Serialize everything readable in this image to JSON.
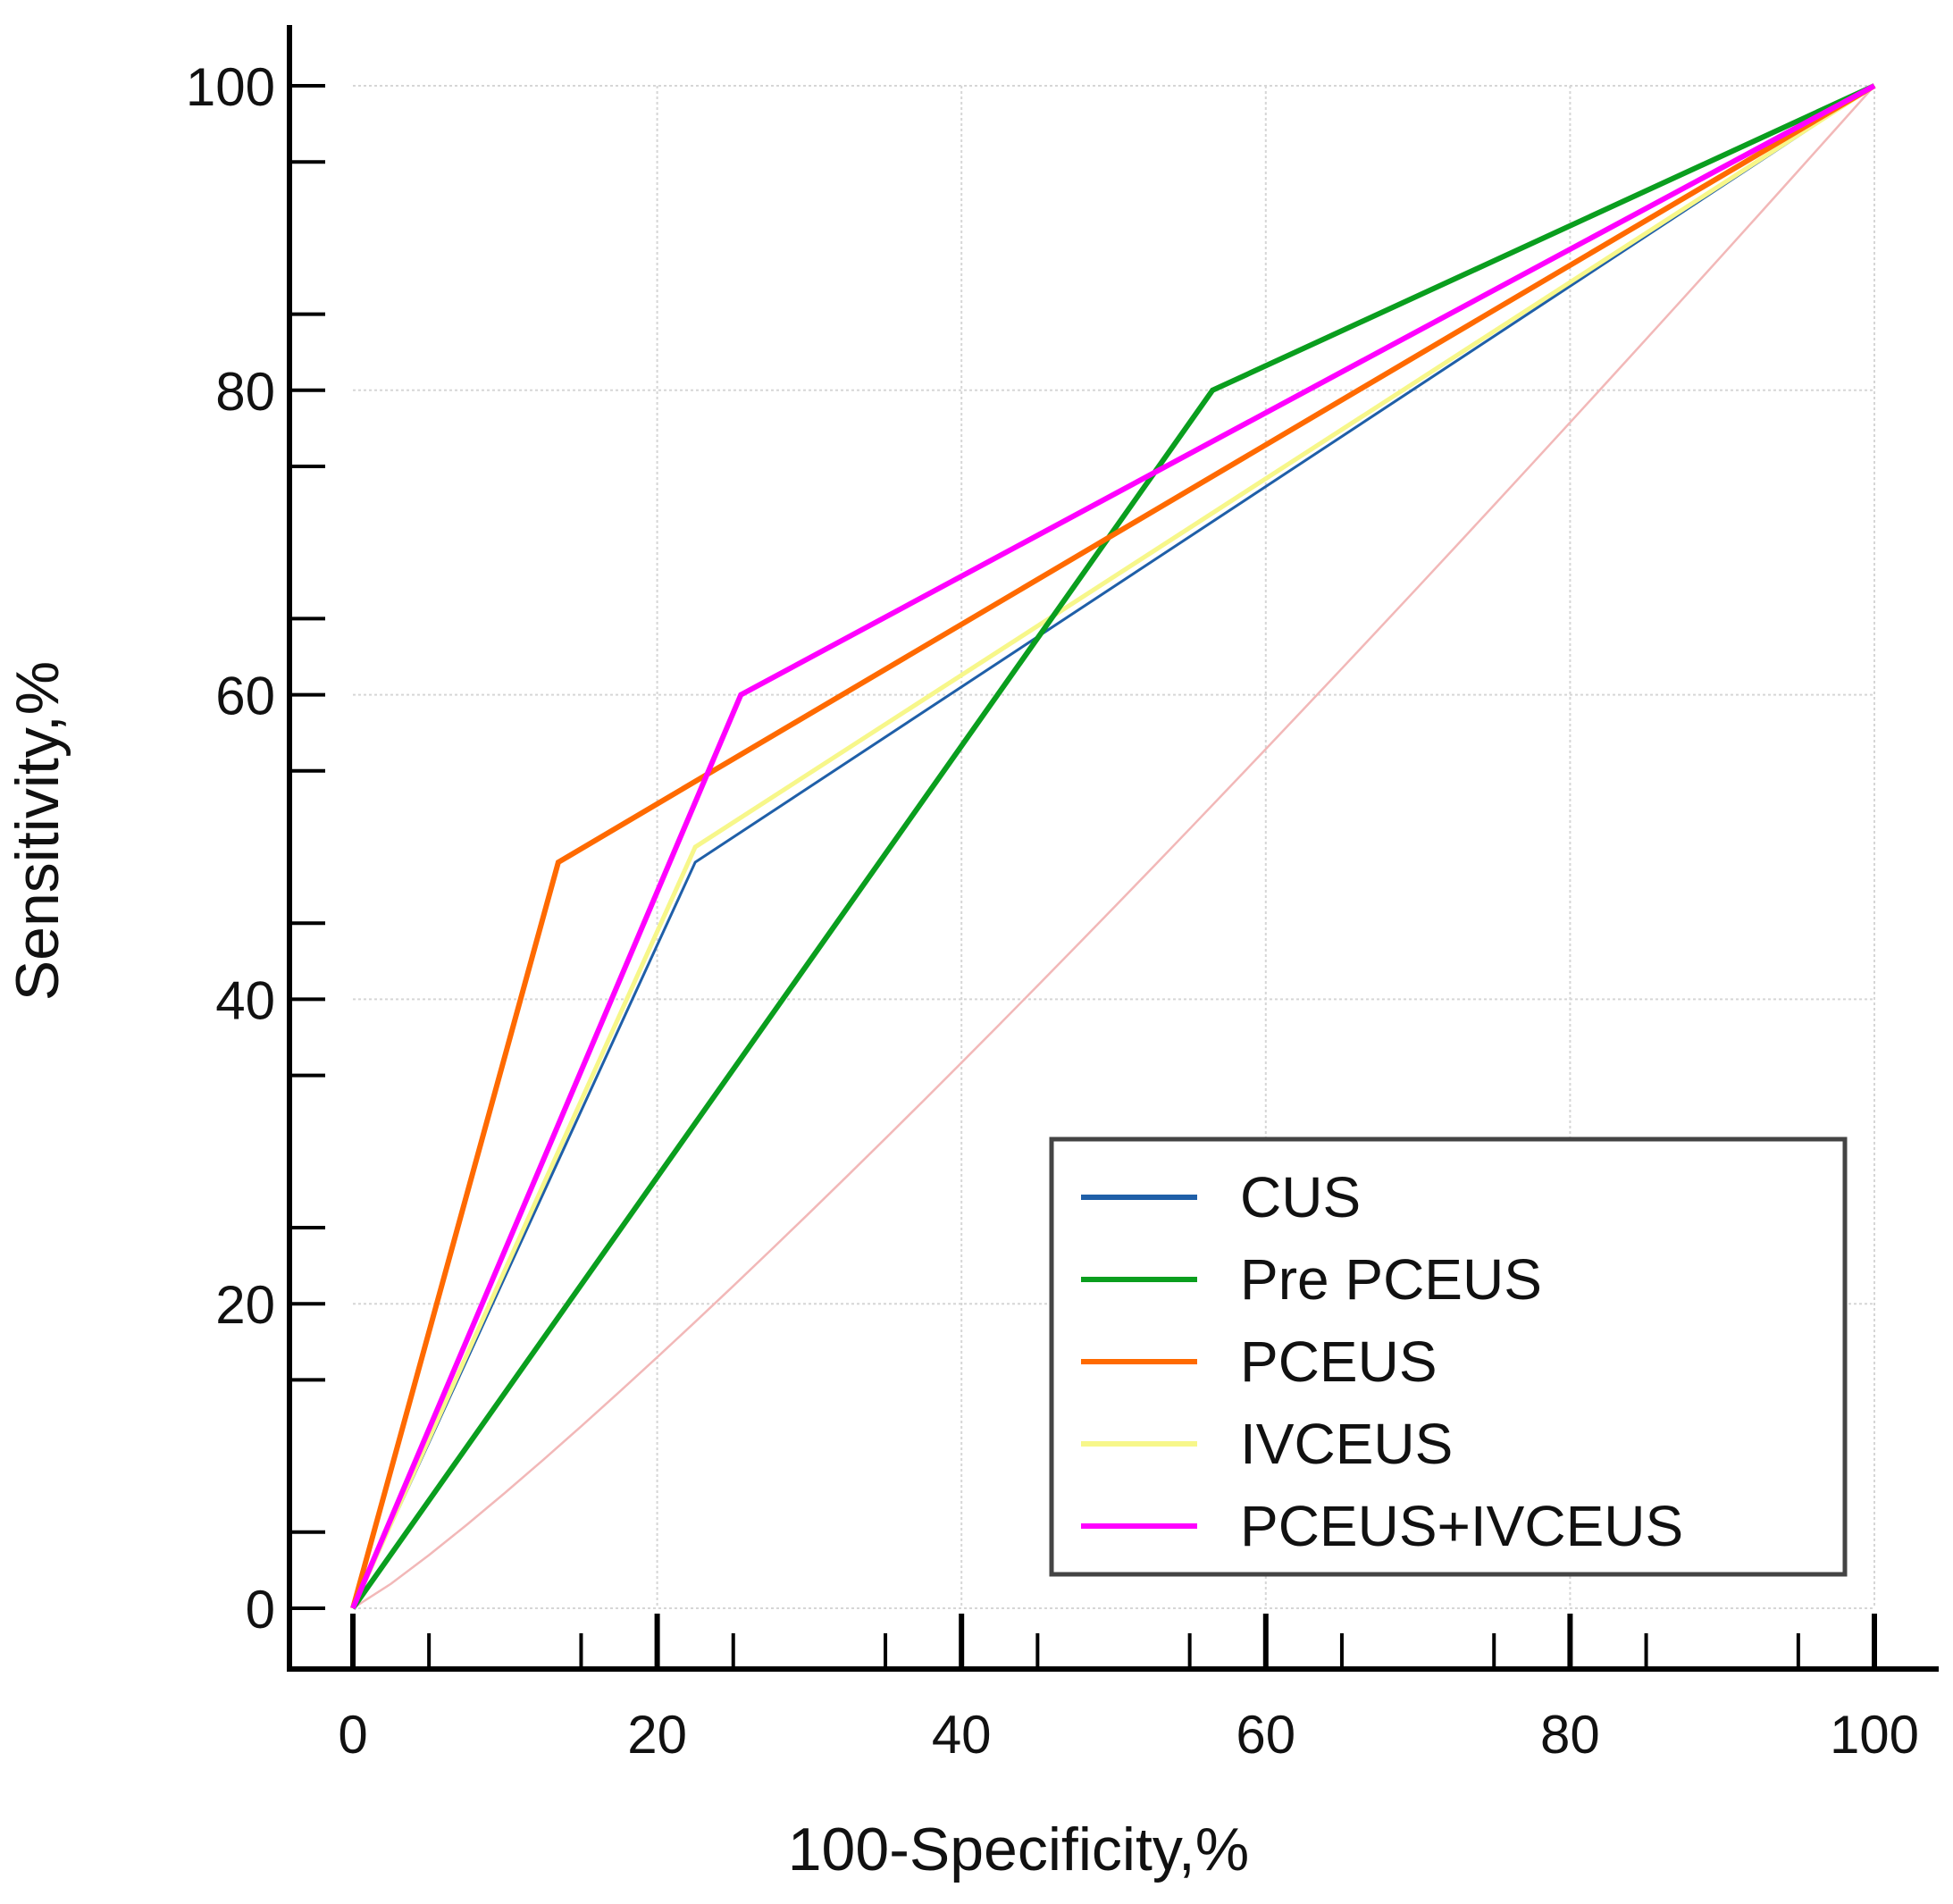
{
  "chart_data": {
    "type": "line",
    "title": "",
    "xlabel": "100-Specificity,%",
    "ylabel": "Sensitivity,%",
    "xlim": [
      0,
      100
    ],
    "ylim": [
      0,
      100
    ],
    "x_ticks": [
      "0",
      "20",
      "40",
      "60",
      "80",
      "100"
    ],
    "y_ticks": [
      "0",
      "20",
      "40",
      "60",
      "80",
      "100"
    ],
    "grid": true,
    "legend_position": "bottom-right",
    "series": [
      {
        "name": "CUS",
        "color": "#1f5fa8",
        "points": [
          [
            0,
            0
          ],
          [
            22.5,
            49
          ],
          [
            100,
            100
          ]
        ]
      },
      {
        "name": "Pre PCEUS",
        "color": "#0a9e1e",
        "points": [
          [
            0,
            0
          ],
          [
            56.5,
            80
          ],
          [
            100,
            100
          ]
        ]
      },
      {
        "name": "PCEUS",
        "color": "#ff6a00",
        "points": [
          [
            0,
            0
          ],
          [
            13.5,
            49
          ],
          [
            100,
            100
          ]
        ]
      },
      {
        "name": "IVCEUS",
        "color": "#f7f78a",
        "points": [
          [
            0,
            0
          ],
          [
            22.5,
            50
          ],
          [
            100,
            100
          ]
        ]
      },
      {
        "name": "PCEUS+IVCEUS",
        "color": "#ff00ff",
        "points": [
          [
            0,
            0
          ],
          [
            25.5,
            60
          ],
          [
            100,
            100
          ]
        ]
      }
    ],
    "reference_line": {
      "color": "#f2b8b8"
    }
  }
}
